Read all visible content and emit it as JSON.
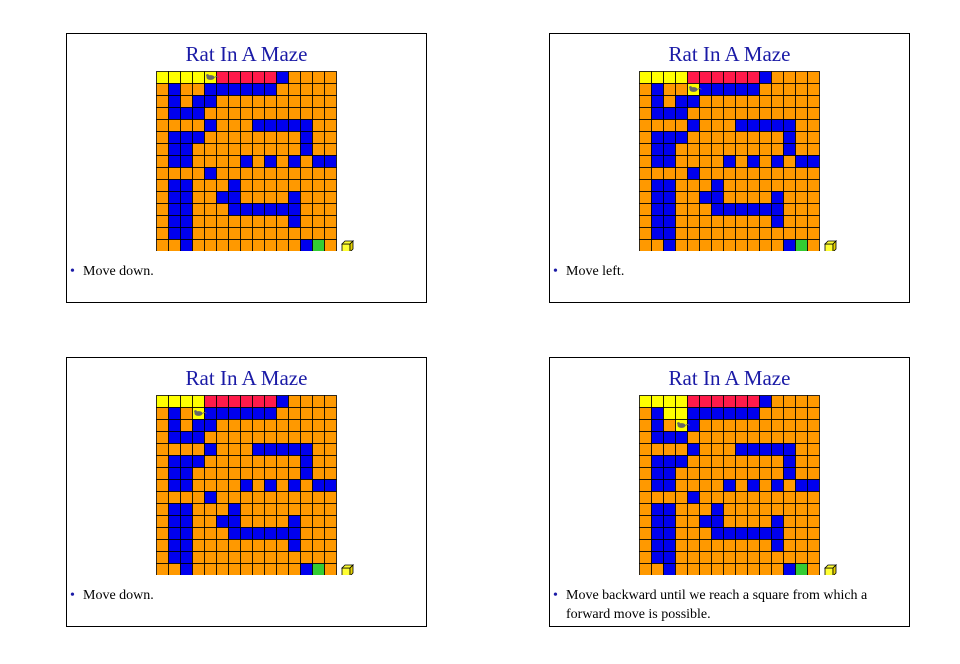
{
  "slides": [
    {
      "title": "Rat In A Maze",
      "bullet": "Move down.",
      "rat_row": 0,
      "rat_col": 4,
      "trail": [
        [
          0,
          0
        ],
        [
          0,
          1
        ],
        [
          0,
          2
        ],
        [
          0,
          3
        ]
      ]
    },
    {
      "title": "Rat In A Maze",
      "bullet": "Move left.",
      "rat_row": 1,
      "rat_col": 4,
      "trail": [
        [
          0,
          0
        ],
        [
          0,
          1
        ],
        [
          0,
          2
        ],
        [
          0,
          3
        ]
      ]
    },
    {
      "title": "Rat In A Maze",
      "bullet": "Move down.",
      "rat_row": 1,
      "rat_col": 3,
      "trail": [
        [
          0,
          0
        ],
        [
          0,
          1
        ],
        [
          0,
          2
        ],
        [
          0,
          3
        ],
        [
          1,
          3
        ]
      ]
    },
    {
      "title": "Rat In A Maze",
      "bullet": "Move backward until we reach a square from which a forward move is possible.",
      "rat_row": 2,
      "rat_col": 3,
      "trail": [
        [
          0,
          0
        ],
        [
          0,
          1
        ],
        [
          0,
          2
        ],
        [
          0,
          3
        ],
        [
          1,
          3
        ],
        [
          1,
          2
        ]
      ]
    }
  ],
  "maze": {
    "rows": 15,
    "cols": 15,
    "walls": [
      [
        0,
        10
      ],
      [
        1,
        1
      ],
      [
        1,
        4
      ],
      [
        1,
        5
      ],
      [
        1,
        6
      ],
      [
        1,
        7
      ],
      [
        1,
        8
      ],
      [
        1,
        9
      ],
      [
        2,
        1
      ],
      [
        2,
        3
      ],
      [
        2,
        4
      ],
      [
        3,
        1
      ],
      [
        3,
        2
      ],
      [
        3,
        3
      ],
      [
        4,
        4
      ],
      [
        4,
        8
      ],
      [
        4,
        9
      ],
      [
        4,
        10
      ],
      [
        4,
        11
      ],
      [
        4,
        12
      ],
      [
        5,
        1
      ],
      [
        5,
        2
      ],
      [
        5,
        3
      ],
      [
        5,
        12
      ],
      [
        6,
        1
      ],
      [
        6,
        2
      ],
      [
        6,
        12
      ],
      [
        7,
        1
      ],
      [
        7,
        2
      ],
      [
        7,
        7
      ],
      [
        7,
        9
      ],
      [
        7,
        11
      ],
      [
        7,
        13
      ],
      [
        7,
        14
      ],
      [
        8,
        4
      ],
      [
        9,
        1
      ],
      [
        9,
        2
      ],
      [
        9,
        6
      ],
      [
        10,
        1
      ],
      [
        10,
        2
      ],
      [
        10,
        5
      ],
      [
        10,
        6
      ],
      [
        10,
        11
      ],
      [
        11,
        1
      ],
      [
        11,
        2
      ],
      [
        11,
        6
      ],
      [
        11,
        7
      ],
      [
        11,
        8
      ],
      [
        11,
        9
      ],
      [
        11,
        10
      ],
      [
        11,
        11
      ],
      [
        12,
        1
      ],
      [
        12,
        2
      ],
      [
        12,
        11
      ],
      [
        13,
        1
      ],
      [
        13,
        2
      ],
      [
        14,
        2
      ],
      [
        14,
        12
      ]
    ],
    "red_cells": [
      [
        0,
        4
      ],
      [
        0,
        5
      ],
      [
        0,
        6
      ],
      [
        0,
        7
      ],
      [
        0,
        8
      ],
      [
        0,
        9
      ]
    ],
    "goal": [
      14,
      13
    ],
    "colors": {
      "open": "#ff9900",
      "wall": "#0000ee",
      "trail": "#ffff00",
      "red": "#ff1a4a",
      "goal": "#33cc33",
      "rat": "#666666",
      "cheese": "#ffff33"
    }
  }
}
